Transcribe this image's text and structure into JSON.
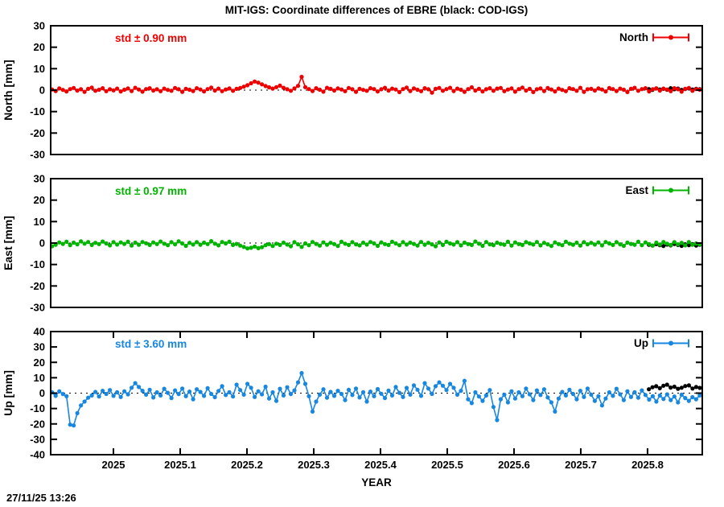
{
  "chart": {
    "title": "MIT-IGS: Coordinate differences of EBRE (black: COD-IGS)",
    "xlabel": "YEAR",
    "timestamp": "27/11/25 13:26",
    "overlay_note": "black: COD-IGS"
  },
  "chart_data": {
    "type": "scatter",
    "x_range": [
      2024.906,
      2025.882
    ],
    "x_ticks": [
      2025.0,
      2025.1,
      2025.2,
      2025.3,
      2025.4,
      2025.5,
      2025.6,
      2025.7,
      2025.8
    ],
    "x_tick_labels": [
      "2025",
      "2025.1",
      "2025.2",
      "2025.3",
      "2025.4",
      "2025.5",
      "2025.6",
      "2025.7",
      "2025.8"
    ],
    "xlabel": "YEAR",
    "grid": false,
    "zero_line": "dotted",
    "legend_position": "top-right-inside",
    "overlay_color": "#000000",
    "panels": [
      {
        "name": "north",
        "ylabel": "North [mm]",
        "ylim": [
          -30,
          30
        ],
        "yticks": [
          -30,
          -20,
          -10,
          0,
          10,
          20,
          30
        ],
        "std_label": "std ± 0.90 mm",
        "legend": "North",
        "color": "#ee0000",
        "show_xtick_labels": false,
        "series": {
          "x_start": 2024.908,
          "x_step": 0.00542,
          "y": [
            0.3,
            -0.4,
            0.8,
            0.1,
            -0.6,
            0.5,
            1.0,
            -0.2,
            0.4,
            -0.8,
            0.6,
            1.2,
            -0.3,
            0.2,
            0.9,
            -0.5,
            0.4,
            -0.1,
            0.7,
            -0.6,
            0.2,
            0.8,
            -0.4,
            1.1,
            0.3,
            -0.7,
            0.5,
            0.9,
            -0.2,
            0.4,
            -0.5,
            0.7,
            0.1,
            -0.3,
            1.0,
            0.4,
            -0.8,
            0.6,
            0.2,
            -0.4,
            0.9,
            0.3,
            -0.6,
            0.5,
            1.2,
            -0.2,
            0.7,
            -0.5,
            0.3,
            0.8,
            -0.3,
            0.6,
            1.0,
            1.6,
            2.3,
            3.2,
            4.0,
            3.5,
            2.7,
            1.9,
            1.3,
            0.7,
            1.4,
            2.1,
            1.1,
            0.4,
            -0.3,
            0.8,
            2.0,
            6.2,
            1.4,
            0.5,
            -0.4,
            0.9,
            0.2,
            -0.7,
            1.1,
            0.6,
            -0.2,
            0.8,
            0.3,
            -0.5,
            1.0,
            0.4,
            -0.8,
            0.6,
            0.1,
            -0.3,
            0.9,
            0.5,
            -0.6,
            0.4,
            1.1,
            -0.2,
            0.7,
            0.3,
            -0.9,
            0.5,
            1.2,
            -0.4,
            0.8,
            0.2,
            -0.5,
            0.9,
            0.4,
            -1.2,
            0.6,
            1.0,
            -0.3,
            0.5,
            1.1,
            -0.4,
            0.7,
            0.2,
            -0.8,
            0.5,
            1.3,
            -0.2,
            0.6,
            -0.6,
            0.4,
            0.9,
            -0.3,
            0.7,
            1.0,
            -0.5,
            0.3,
            0.8,
            -0.7,
            0.5,
            1.2,
            -0.2,
            0.6,
            -0.9,
            0.4,
            0.8,
            -0.4,
            1.0,
            0.3,
            -0.6,
            0.7,
            0.1,
            -0.5,
            0.9,
            0.5,
            -0.3,
            1.1,
            -0.8,
            0.4,
            0.6,
            -0.2,
            0.8,
            0.3,
            -0.6,
            1.0,
            0.5,
            -0.4,
            0.7,
            0.2,
            -0.9,
            0.6,
            1.1,
            -0.3,
            0.5,
            0.9,
            -0.6,
            0.4,
            0.8,
            -0.2,
            0.7,
            0.3,
            -0.5,
            0.9,
            0.4,
            -0.7,
            0.6,
            1.0,
            -0.3,
            0.5,
            0.2
          ]
        },
        "black_series": {
          "x_start": 2025.802,
          "x_step": 0.00545,
          "y": [
            0.5,
            0.1,
            0.8,
            0.3,
            0.6,
            0.2,
            0.9,
            0.4,
            0.7,
            0.1,
            0.5,
            0.8,
            0.3,
            0.6,
            0.4
          ]
        }
      },
      {
        "name": "east",
        "ylabel": "East [mm]",
        "ylim": [
          -30,
          30
        ],
        "yticks": [
          -30,
          -20,
          -10,
          0,
          10,
          20,
          30
        ],
        "std_label": "std ± 0.97 mm",
        "legend": "East",
        "color": "#00b400",
        "show_xtick_labels": false,
        "series": {
          "x_start": 2024.908,
          "x_step": 0.00542,
          "y": [
            -1.5,
            -0.8,
            0.3,
            -0.4,
            0.6,
            -1.0,
            0.2,
            -0.6,
            0.8,
            -0.3,
            0.5,
            -0.9,
            0.1,
            -0.5,
            0.7,
            -0.2,
            -1.1,
            0.4,
            -0.7,
            0.3,
            -0.4,
            0.6,
            -1.2,
            0.2,
            -0.8,
            0.5,
            -0.1,
            -0.9,
            0.3,
            -0.5,
            0.7,
            -0.3,
            -1.0,
            0.4,
            -0.6,
            0.8,
            -0.2,
            -1.3,
            0.1,
            -0.7,
            0.4,
            -0.8,
            0.2,
            -0.5,
            0.9,
            -0.3,
            -1.1,
            0.5,
            -0.2,
            0.6,
            -0.9,
            -0.4,
            -1.2,
            -1.8,
            -2.5,
            -2.2,
            -1.6,
            -2.4,
            -1.9,
            -1.0,
            -0.5,
            -1.4,
            -0.3,
            -0.9,
            0.2,
            -0.7,
            -1.5,
            0.4,
            -0.6,
            -1.8,
            -0.2,
            -1.0,
            0.5,
            -0.4,
            -1.2,
            0.3,
            -0.8,
            0.1,
            -0.5,
            -1.4,
            0.6,
            -0.3,
            -0.9,
            0.4,
            -0.6,
            -1.1,
            0.2,
            -0.7,
            0.5,
            -0.2,
            -1.3,
            0.3,
            -0.5,
            -0.9,
            0.6,
            -0.2,
            -1.0,
            0.4,
            -0.7,
            0.2,
            -0.4,
            -1.2,
            0.5,
            -0.8,
            0.1,
            -0.6,
            -1.5,
            0.3,
            -0.9,
            0.6,
            -0.2,
            -0.7,
            0.4,
            -1.1,
            0.2,
            -0.5,
            -0.9,
            0.7,
            -0.3,
            -1.3,
            0.5,
            -0.6,
            -1.0,
            0.2,
            -0.4,
            -0.8,
            0.6,
            -1.2,
            0.3,
            -0.5,
            -0.9,
            0.4,
            -0.2,
            -0.7,
            0.5,
            -1.1,
            0.1,
            -0.6,
            -1.4,
            0.3,
            -0.5,
            -1.0,
            0.6,
            -0.3,
            -0.8,
            0.2,
            -1.2,
            0.4,
            -0.6,
            0.1,
            -0.7,
            0.3,
            -1.1,
            0.5,
            -0.2,
            -0.9,
            0.4,
            -0.6,
            -1.3,
            0.2,
            -0.4,
            -0.8,
            0.6,
            -1.0,
            0.3,
            -0.5,
            -1.2,
            0.2,
            -0.7,
            0.5,
            -0.3,
            -0.9,
            0.4,
            -0.6,
            0.1,
            -1.1,
            0.5,
            -0.8,
            -0.2,
            -0.6
          ]
        },
        "black_series": {
          "x_start": 2025.802,
          "x_step": 0.00545,
          "y": [
            -0.8,
            -1.2,
            -0.5,
            -1.0,
            -1.4,
            -0.7,
            -1.1,
            -0.4,
            -0.9,
            -1.3,
            -0.6,
            -1.0,
            -0.5,
            -1.2,
            -0.8
          ]
        }
      },
      {
        "name": "up",
        "ylabel": "Up [mm]",
        "ylim": [
          -40,
          40
        ],
        "yticks": [
          -40,
          -30,
          -20,
          -10,
          0,
          10,
          20,
          30,
          40
        ],
        "std_label": "std ± 3.60 mm",
        "legend": "Up",
        "color": "#1787e0",
        "show_xtick_labels": true,
        "series": {
          "x_start": 2024.908,
          "x_step": 0.00542,
          "y": [
            0.5,
            -1.8,
            1.2,
            -0.6,
            -2.0,
            -20.5,
            -21.0,
            -13.0,
            -8.0,
            -5.5,
            -3.0,
            -1.5,
            0.8,
            -2.2,
            1.5,
            -0.5,
            2.0,
            -1.8,
            0.6,
            -2.5,
            1.2,
            -0.8,
            3.5,
            6.5,
            4.0,
            1.5,
            -1.0,
            2.2,
            -2.8,
            0.5,
            -1.5,
            2.8,
            0.2,
            -3.2,
            1.8,
            -0.6,
            3.0,
            -2.0,
            1.0,
            -4.0,
            2.5,
            0.8,
            -1.8,
            3.2,
            -0.5,
            -2.6,
            1.4,
            4.5,
            -1.2,
            0.6,
            -2.2,
            5.5,
            2.0,
            -1.0,
            6.0,
            3.5,
            -2.5,
            1.2,
            -0.8,
            4.2,
            -3.5,
            0.5,
            -5.0,
            2.8,
            -1.5,
            3.8,
            -0.6,
            1.8,
            7.0,
            13.0,
            6.0,
            -2.0,
            -12.0,
            -5.5,
            -1.0,
            2.5,
            -3.0,
            0.8,
            -1.8,
            1.5,
            -0.5,
            -4.5,
            2.2,
            -1.2,
            3.0,
            -2.8,
            0.6,
            -5.5,
            1.0,
            -2.0,
            2.6,
            -0.4,
            -3.2,
            1.6,
            -1.5,
            4.0,
            0.2,
            -2.5,
            3.4,
            -1.0,
            5.0,
            2.2,
            -1.8,
            6.5,
            3.0,
            -0.5,
            4.5,
            7.0,
            4.8,
            2.0,
            6.0,
            3.5,
            -1.0,
            1.5,
            8.0,
            -4.0,
            -6.5,
            0.5,
            -2.2,
            -5.0,
            -1.5,
            2.0,
            -9.0,
            -17.5,
            -4.0,
            -1.0,
            -6.0,
            1.2,
            -3.5,
            0.5,
            -2.0,
            3.0,
            -0.8,
            -4.5,
            1.8,
            -1.2,
            2.5,
            -2.8,
            -6.0,
            -12.0,
            -3.5,
            0.8,
            -1.5,
            2.2,
            -0.5,
            -4.0,
            1.5,
            -2.5,
            3.0,
            -1.0,
            -5.0,
            -2.0,
            -8.0,
            -3.5,
            0.5,
            -1.8,
            2.8,
            -0.8,
            -4.5,
            1.2,
            -2.5,
            0.6,
            -3.0,
            1.8,
            -1.2,
            -4.2,
            -2.0,
            -5.5,
            -1.5,
            -3.8,
            -0.8,
            -4.5,
            -2.2,
            -6.0,
            -1.0,
            -3.2,
            -5.0,
            -2.6,
            -4.0,
            -1.5
          ]
        },
        "black_series": {
          "x_start": 2025.802,
          "x_step": 0.00545,
          "y": [
            2.5,
            3.8,
            4.5,
            3.2,
            4.8,
            5.5,
            3.6,
            4.2,
            2.8,
            3.5,
            4.6,
            5.0,
            3.0,
            4.0,
            3.4
          ]
        }
      }
    ]
  }
}
